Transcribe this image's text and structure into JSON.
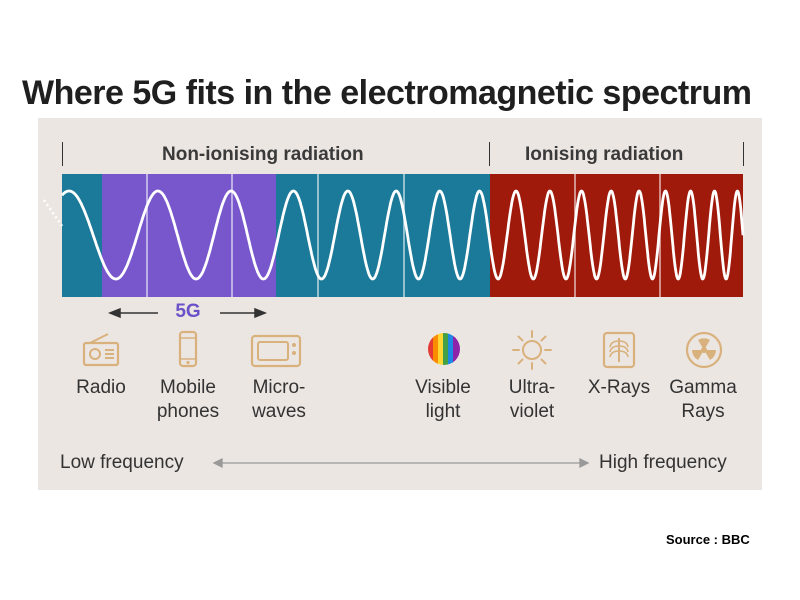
{
  "title": "Where 5G fits in the electromagnetic spectrum",
  "categories": {
    "non_ionising": "Non-ionising radiation",
    "ionising": "Ionising radiation"
  },
  "highlight_label": "5G",
  "colors": {
    "teal": "#1b7a99",
    "purple": "#7857cc",
    "red": "#a01a0b",
    "panel": "#ece6e2",
    "five_g_text": "#6c52c9",
    "icon_tan": "#d9b17c"
  },
  "bands": [
    {
      "line1": "Radio",
      "line2": "",
      "icon": "radio-icon"
    },
    {
      "line1": "Mobile",
      "line2": "phones",
      "icon": "mobile-phone-icon"
    },
    {
      "line1": "Micro-",
      "line2": "waves",
      "icon": "microwave-icon"
    },
    {
      "line1": "Visible",
      "line2": "light",
      "icon": "rainbow-circle-icon"
    },
    {
      "line1": "Ultra-",
      "line2": "violet",
      "icon": "sun-icon"
    },
    {
      "line1": "X-Rays",
      "line2": "",
      "icon": "ribcage-xray-icon"
    },
    {
      "line1": "Gamma",
      "line2": "Rays",
      "icon": "radiation-symbol-icon"
    }
  ],
  "frequency_axis": {
    "low": "Low frequency",
    "high": "High frequency"
  },
  "source": "Source : BBC"
}
